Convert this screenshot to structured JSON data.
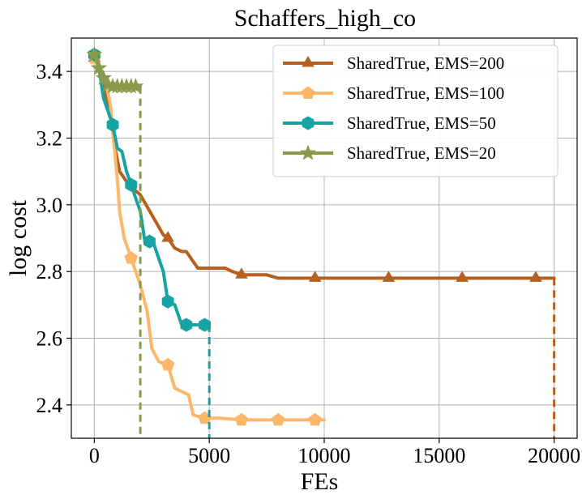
{
  "chart_data": {
    "type": "line",
    "title": "Schaffers_high_co",
    "xlabel": "FEs",
    "ylabel": "log cost",
    "xlim": [
      -1000,
      21000
    ],
    "ylim": [
      2.3,
      3.5
    ],
    "xticks": [
      0,
      5000,
      10000,
      15000,
      20000
    ],
    "xtick_labels": [
      "0",
      "5000",
      "10000",
      "15000",
      "20000"
    ],
    "yticks": [
      2.4,
      2.6,
      2.8,
      3.0,
      3.2,
      3.4
    ],
    "ytick_labels": [
      "2.4",
      "2.6",
      "2.8",
      "3.0",
      "3.2",
      "3.4"
    ],
    "grid": true,
    "legend_position": "top-right",
    "series": [
      {
        "name": "SharedTrue, EMS=200",
        "color": "#b5601f",
        "marker": "triangle",
        "points": [
          [
            0,
            3.44
          ],
          [
            200,
            3.42
          ],
          [
            500,
            3.32
          ],
          [
            700,
            3.27
          ],
          [
            900,
            3.17
          ],
          [
            1100,
            3.1
          ],
          [
            1500,
            3.06
          ],
          [
            2000,
            3.03
          ],
          [
            2500,
            2.97
          ],
          [
            3000,
            2.91
          ],
          [
            3200,
            2.9
          ],
          [
            3500,
            2.87
          ],
          [
            3800,
            2.86
          ],
          [
            4000,
            2.86
          ],
          [
            4500,
            2.81
          ],
          [
            5000,
            2.81
          ],
          [
            5700,
            2.81
          ],
          [
            6000,
            2.8
          ],
          [
            6400,
            2.79
          ],
          [
            7000,
            2.79
          ],
          [
            7500,
            2.79
          ],
          [
            8000,
            2.78
          ],
          [
            9600,
            2.78
          ],
          [
            12800,
            2.78
          ],
          [
            16000,
            2.78
          ],
          [
            19200,
            2.78
          ],
          [
            20000,
            2.78
          ]
        ],
        "marker_points": [
          [
            0,
            3.44
          ],
          [
            3200,
            2.9
          ],
          [
            6400,
            2.79
          ],
          [
            9600,
            2.78
          ],
          [
            12800,
            2.78
          ],
          [
            16000,
            2.78
          ],
          [
            19200,
            2.78
          ]
        ],
        "end_drop_x": 20000
      },
      {
        "name": "SharedTrue, EMS=100",
        "color": "#fdb76a",
        "marker": "pentagon",
        "points": [
          [
            0,
            3.44
          ],
          [
            200,
            3.42
          ],
          [
            500,
            3.37
          ],
          [
            700,
            3.3
          ],
          [
            800,
            3.22
          ],
          [
            1000,
            3.08
          ],
          [
            1100,
            2.98
          ],
          [
            1300,
            2.9
          ],
          [
            1600,
            2.84
          ],
          [
            2000,
            2.76
          ],
          [
            2300,
            2.68
          ],
          [
            2500,
            2.57
          ],
          [
            2800,
            2.53
          ],
          [
            3200,
            2.52
          ],
          [
            3500,
            2.45
          ],
          [
            3800,
            2.44
          ],
          [
            4100,
            2.43
          ],
          [
            4300,
            2.37
          ],
          [
            4800,
            2.36
          ],
          [
            5500,
            2.36
          ],
          [
            6400,
            2.355
          ],
          [
            8000,
            2.355
          ],
          [
            9600,
            2.355
          ],
          [
            10000,
            2.355
          ]
        ],
        "marker_points": [
          [
            0,
            3.44
          ],
          [
            1600,
            2.84
          ],
          [
            3200,
            2.52
          ],
          [
            4800,
            2.36
          ],
          [
            6400,
            2.355
          ],
          [
            8000,
            2.355
          ],
          [
            9600,
            2.355
          ]
        ],
        "end_drop_x": null
      },
      {
        "name": "SharedTrue, EMS=50",
        "color": "#17a3a3",
        "marker": "hexagon",
        "points": [
          [
            0,
            3.45
          ],
          [
            200,
            3.41
          ],
          [
            400,
            3.32
          ],
          [
            600,
            3.28
          ],
          [
            800,
            3.24
          ],
          [
            1000,
            3.17
          ],
          [
            1200,
            3.16
          ],
          [
            1400,
            3.1
          ],
          [
            1600,
            3.06
          ],
          [
            2000,
            2.98
          ],
          [
            2200,
            2.89
          ],
          [
            2400,
            2.89
          ],
          [
            2600,
            2.88
          ],
          [
            3000,
            2.8
          ],
          [
            3200,
            2.71
          ],
          [
            3500,
            2.7
          ],
          [
            3800,
            2.64
          ],
          [
            4200,
            2.64
          ],
          [
            4800,
            2.64
          ],
          [
            5000,
            2.64
          ]
        ],
        "marker_points": [
          [
            0,
            3.45
          ],
          [
            800,
            3.24
          ],
          [
            1600,
            3.06
          ],
          [
            2400,
            2.89
          ],
          [
            3200,
            2.71
          ],
          [
            4000,
            2.64
          ],
          [
            4800,
            2.64
          ]
        ],
        "end_drop_x": 5000
      },
      {
        "name": "SharedTrue, EMS=20",
        "color": "#8a9a4a",
        "marker": "star",
        "points": [
          [
            0,
            3.45
          ],
          [
            100,
            3.43
          ],
          [
            200,
            3.41
          ],
          [
            300,
            3.39
          ],
          [
            400,
            3.38
          ],
          [
            500,
            3.36
          ],
          [
            600,
            3.36
          ],
          [
            800,
            3.355
          ],
          [
            1000,
            3.355
          ],
          [
            1200,
            3.355
          ],
          [
            1400,
            3.355
          ],
          [
            1600,
            3.355
          ],
          [
            1800,
            3.355
          ],
          [
            2000,
            3.355
          ]
        ],
        "marker_points": [
          [
            0,
            3.45
          ],
          [
            200,
            3.41
          ],
          [
            400,
            3.38
          ],
          [
            600,
            3.36
          ],
          [
            800,
            3.355
          ],
          [
            1000,
            3.355
          ],
          [
            1200,
            3.355
          ],
          [
            1400,
            3.355
          ],
          [
            1600,
            3.355
          ],
          [
            1800,
            3.355
          ]
        ],
        "end_drop_x": 2000
      }
    ]
  }
}
